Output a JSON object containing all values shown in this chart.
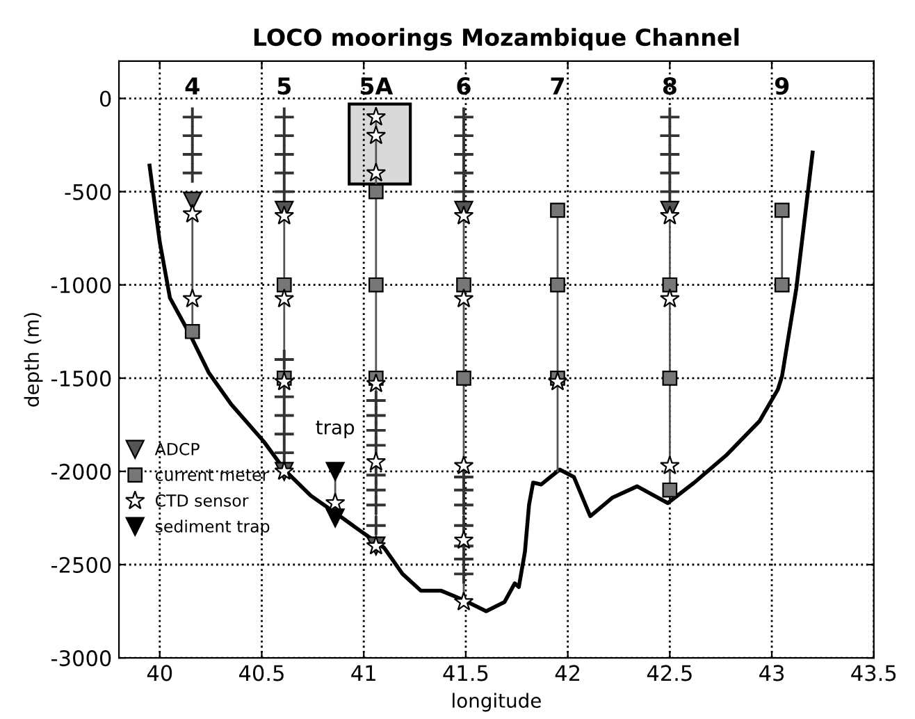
{
  "chart_data": {
    "type": "scatter",
    "title": "LOCO moorings Mozambique Channel",
    "xlabel": "longitude",
    "ylabel": "depth (m)",
    "xlim": [
      39.8,
      43.5
    ],
    "ylim": [
      -3000,
      200
    ],
    "xticks": [
      40,
      40.5,
      41,
      41.5,
      42,
      42.5,
      43,
      43.5
    ],
    "yticks": [
      0,
      -500,
      -1000,
      -1500,
      -2000,
      -2500,
      -3000
    ],
    "grid": true,
    "legend": "bottom left",
    "annotations": [
      "4",
      "5",
      "5A",
      "6",
      "7",
      "8",
      "9",
      {
        "text": "trap",
        "x": 40.86,
        "y": -2000
      }
    ],
    "series": [
      {
        "type": "line",
        "color": "#000000",
        "marker": "none",
        "x": [
          39.95,
          40.0,
          40.05,
          40.15,
          40.24,
          40.35,
          40.51,
          40.61,
          40.74,
          40.87,
          41.01,
          41.1,
          41.19,
          41.28,
          41.38,
          41.49,
          41.6,
          41.69,
          41.74,
          41.76,
          41.79,
          41.81,
          41.83,
          41.87,
          41.96,
          42.03,
          42.11,
          42.22,
          42.34,
          42.49,
          42.62,
          42.78,
          42.94,
          43.03,
          43.05,
          43.12,
          43.2
        ],
        "values": [
          -360,
          -770,
          -1070,
          -1270,
          -1470,
          -1640,
          -1840,
          -1990,
          -2130,
          -2230,
          -2340,
          -2410,
          -2550,
          -2640,
          -2640,
          -2690,
          -2750,
          -2700,
          -2600,
          -2620,
          -2430,
          -2180,
          -2060,
          -2070,
          -1990,
          -2030,
          -2240,
          -2140,
          -2080,
          -2170,
          -2060,
          -1910,
          -1730,
          -1560,
          -1490,
          -1020,
          -290
        ]
      },
      {
        "type": "line",
        "color": "#555555",
        "marker": "none",
        "x": [
          40.16,
          40.16,
          null,
          40.61,
          40.61,
          null,
          41.06,
          41.06,
          null,
          41.49,
          41.49,
          null,
          41.95,
          41.95,
          null,
          42.5,
          42.5,
          null,
          43.05,
          43.05,
          null,
          40.86,
          40.86
        ],
        "values": [
          -550,
          -1250,
          null,
          -600,
          -2000,
          null,
          -100,
          -2400,
          null,
          -600,
          -2700,
          null,
          -600,
          -2000,
          null,
          -600,
          -2100,
          null,
          -600,
          -1000,
          null,
          -2000,
          -2250
        ]
      },
      {
        "marker": "cross",
        "color": "#333333",
        "x": [
          40.16,
          40.16,
          40.16,
          40.16,
          40.61,
          40.61,
          40.61,
          40.61,
          40.61,
          40.61,
          40.61,
          40.61,
          40.61,
          40.61,
          41.06,
          41.06,
          41.06,
          41.06,
          41.06,
          41.06,
          41.06,
          41.06,
          41.49,
          41.49,
          41.49,
          41.49,
          41.49,
          41.49,
          41.49,
          41.49,
          41.49,
          41.49,
          41.49,
          41.49,
          42.5,
          42.5,
          42.5,
          42.5,
          42.5
        ],
        "values": [
          -100,
          -200,
          -300,
          -400,
          -100,
          -200,
          -300,
          -400,
          -500,
          -1400,
          -1600,
          -1700,
          -1800,
          -1900,
          -1780,
          -1860,
          -2020,
          -2100,
          -2180,
          -2290,
          -1700,
          -1620,
          -100,
          -200,
          -300,
          -400,
          -500,
          -2030,
          -2100,
          -2180,
          -2290,
          -2400,
          -2470,
          -2550,
          -100,
          -200,
          -300,
          -400,
          -500
        ]
      },
      {
        "name": "ADCP",
        "marker": "triangle",
        "color": "#555555",
        "x": [
          40.16,
          40.61,
          41.49,
          42.5,
          40.61,
          41.06
        ],
        "values": [
          -550,
          -600,
          -600,
          -600,
          -2000,
          -2400
        ]
      },
      {
        "name": "current meter",
        "marker": "square",
        "color": "#777777",
        "x": [
          40.16,
          40.61,
          40.61,
          41.06,
          41.06,
          41.06,
          41.49,
          41.49,
          41.95,
          41.95,
          41.95,
          42.5,
          42.5,
          42.5,
          43.05,
          43.05
        ],
        "values": [
          -1250,
          -1000,
          -1500,
          -500,
          -1000,
          -1500,
          -1000,
          -1500,
          -600,
          -1000,
          -1500,
          -1000,
          -1500,
          -2100,
          -600,
          -1000
        ]
      },
      {
        "name": "CTD sensor",
        "marker": "star",
        "color": "#ffffff",
        "x": [
          40.16,
          40.16,
          40.61,
          40.61,
          40.61,
          40.61,
          41.06,
          41.06,
          41.06,
          41.06,
          41.06,
          41.06,
          41.49,
          41.49,
          41.49,
          41.49,
          41.49,
          41.95,
          42.5,
          42.5,
          42.5,
          40.86
        ],
        "values": [
          -620,
          -1075,
          -630,
          -1075,
          -1520,
          -2000,
          -100,
          -200,
          -400,
          -1530,
          -1950,
          -2400,
          -630,
          -1075,
          -1970,
          -2370,
          -2700,
          -1520,
          -630,
          -1075,
          -1970,
          -2170
        ]
      },
      {
        "name": "sediment trap",
        "marker": "triangle",
        "color": "#000000",
        "x": [
          40.86,
          40.86
        ],
        "values": [
          -2000,
          -2250
        ]
      }
    ]
  }
}
